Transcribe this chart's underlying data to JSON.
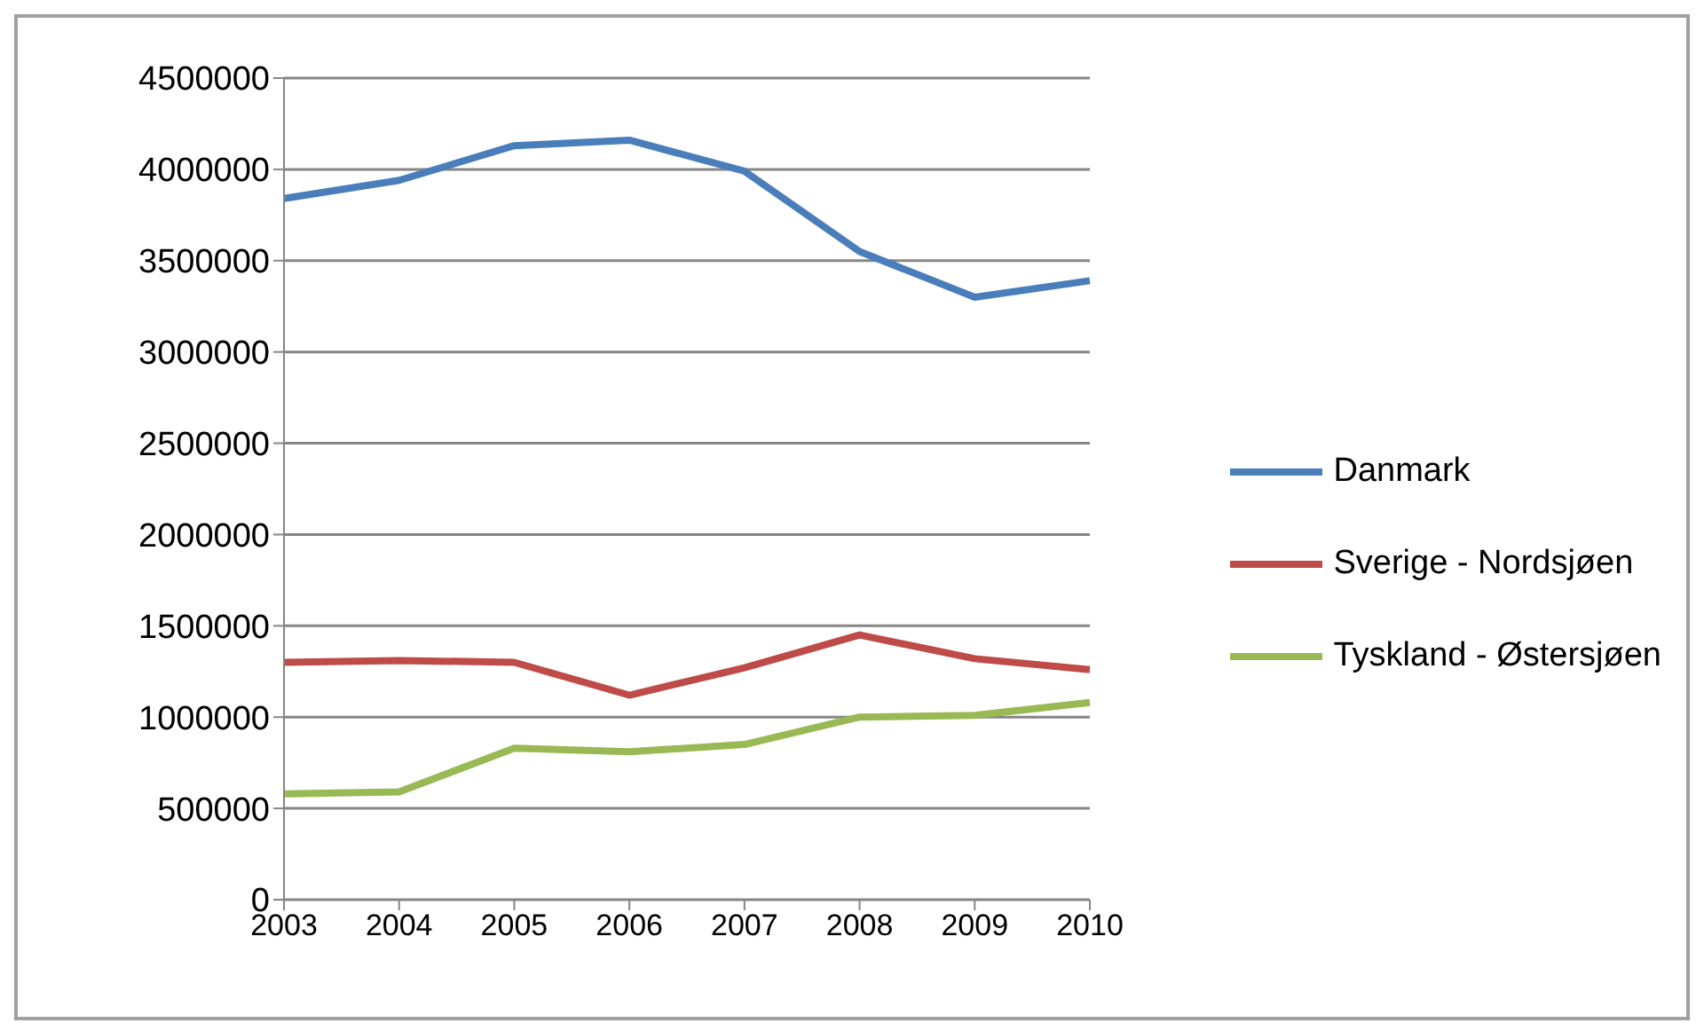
{
  "chart_data": {
    "type": "line",
    "categories": [
      "2003",
      "2004",
      "2005",
      "2006",
      "2007",
      "2008",
      "2009",
      "2010"
    ],
    "series": [
      {
        "name": "Danmark",
        "color": "#4a7ebb",
        "values": [
          3840000,
          3940000,
          4130000,
          4160000,
          3990000,
          3550000,
          3300000,
          3390000
        ]
      },
      {
        "name": "Sverige - Nordsjøen",
        "color": "#be4b48",
        "values": [
          1300000,
          1310000,
          1300000,
          1120000,
          1270000,
          1450000,
          1320000,
          1260000
        ]
      },
      {
        "name": "Tyskland - Østersjøen",
        "color": "#98b954",
        "values": [
          580000,
          590000,
          830000,
          810000,
          850000,
          1000000,
          1010000,
          1080000
        ]
      }
    ],
    "ylim": [
      0,
      4500000
    ],
    "yticks": [
      0,
      500000,
      1000000,
      1500000,
      2000000,
      2500000,
      3000000,
      3500000,
      4000000,
      4500000
    ],
    "grid": "y",
    "legend": "right",
    "marker": "none",
    "line_style": "solid"
  }
}
